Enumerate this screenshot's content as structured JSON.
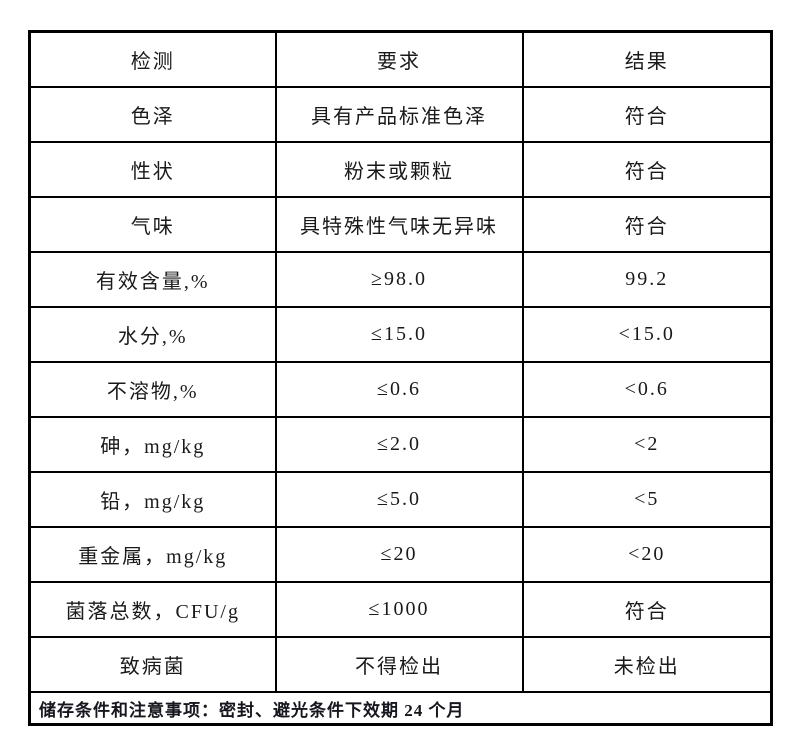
{
  "colors": {
    "background": "#ffffff",
    "border": "#000000",
    "text": "#1a1a1a"
  },
  "table": {
    "columns": [
      "检测",
      "要求",
      "结果"
    ],
    "rows": [
      {
        "item": "色泽",
        "requirement": "具有产品标准色泽",
        "result": "符合"
      },
      {
        "item": "性状",
        "requirement": "粉末或颗粒",
        "result": "符合"
      },
      {
        "item": "气味",
        "requirement": "具特殊性气味无异味",
        "result": "符合"
      },
      {
        "item": "有效含量,%",
        "requirement": "≥98.0",
        "result": "99.2"
      },
      {
        "item": "水分,%",
        "requirement": "≤15.0",
        "result": "<15.0"
      },
      {
        "item": "不溶物,%",
        "requirement": "≤0.6",
        "result": "<0.6"
      },
      {
        "item": "砷，mg/kg",
        "requirement": "≤2.0",
        "result": "<2"
      },
      {
        "item": "铅，mg/kg",
        "requirement": "≤5.0",
        "result": "<5"
      },
      {
        "item": "重金属，mg/kg",
        "requirement": "≤20",
        "result": "<20"
      },
      {
        "item": "菌落总数，CFU/g",
        "requirement": "≤1000",
        "result": "符合"
      },
      {
        "item": "致病菌",
        "requirement": "不得检出",
        "result": "未检出"
      }
    ],
    "footer": "储存条件和注意事项：密封、避光条件下效期 24 个月"
  }
}
